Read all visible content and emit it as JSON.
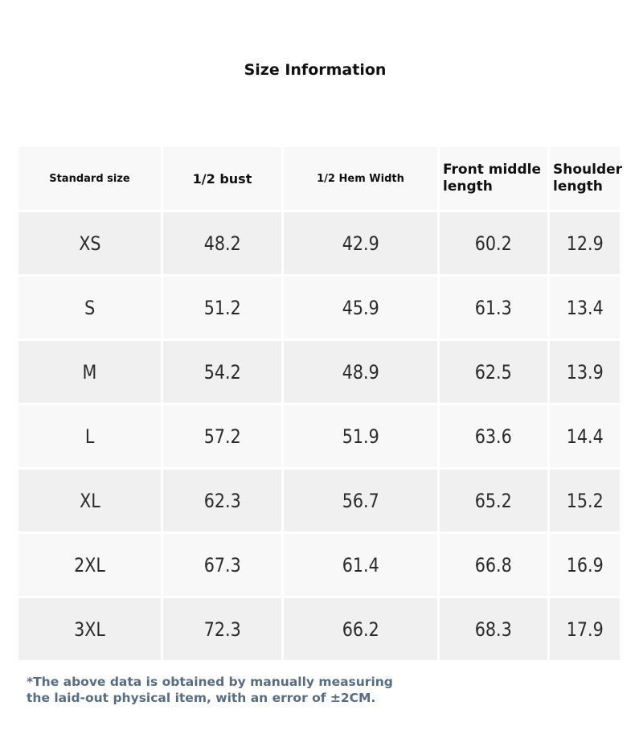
{
  "title": "Size Information",
  "table": {
    "headers": [
      "Standard size",
      "1/2 bust",
      "1/2 Hem Width",
      "Front middle length",
      "Shoulder length"
    ],
    "rows": [
      [
        "XS",
        "48.2",
        "42.9",
        "60.2",
        "12.9"
      ],
      [
        "S",
        "51.2",
        "45.9",
        "61.3",
        "13.4"
      ],
      [
        "M",
        "54.2",
        "48.9",
        "62.5",
        "13.9"
      ],
      [
        "L",
        "57.2",
        "51.9",
        "63.6",
        "14.4"
      ],
      [
        "XL",
        "62.3",
        "56.7",
        "65.2",
        "15.2"
      ],
      [
        "2XL",
        "67.3",
        "61.4",
        "66.8",
        "16.9"
      ],
      [
        "3XL",
        "72.3",
        "66.2",
        "68.3",
        "17.9"
      ]
    ]
  },
  "note": {
    "line1": "*The above data is obtained by manually measuring",
    "line2": "the laid-out physical item, with an error of ±2CM."
  },
  "colors": {
    "row_shaded": "#f0f0f0",
    "row_light": "#f8f8f8",
    "note_text": "#5a6c80"
  }
}
